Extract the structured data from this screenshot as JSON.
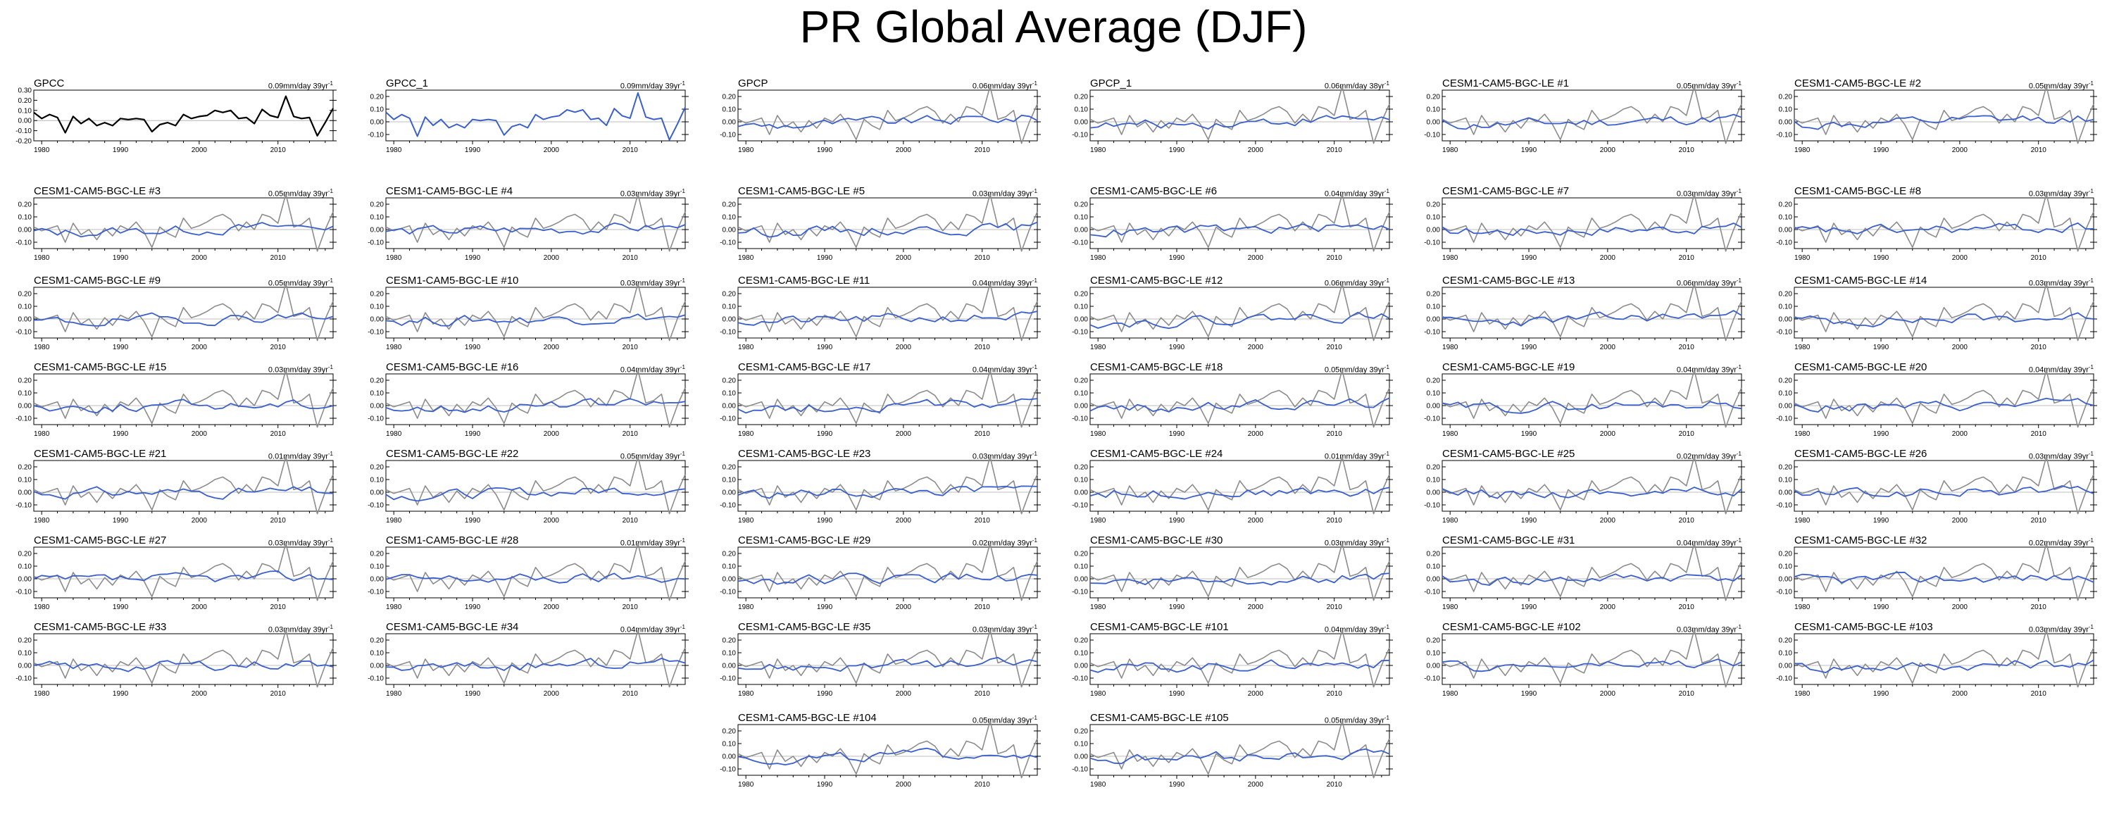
{
  "title": "PR Global Average (DJF)",
  "colors": {
    "reference": "#000000",
    "observed_in_model_panels": "#8c8c8c",
    "model_series": "#3a5fcd",
    "zero_line": "#aaaaaa",
    "axis": "#000000"
  },
  "chart_data": {
    "type": "line",
    "layout": "small multiples grid, 6 columns",
    "x_ticks": [
      1980,
      1990,
      2000,
      2010
    ],
    "x_range": [
      1979,
      2017
    ],
    "default_y_ticks": [
      "0.20",
      "0.10",
      "0.00",
      "-0.10"
    ],
    "default_y_range": [
      -0.15,
      0.25
    ],
    "first_panel_y_ticks": [
      "0.30",
      "0.20",
      "0.10",
      "0.00",
      "-0.10",
      "-0.20"
    ],
    "first_panel_y_range": [
      -0.2,
      0.3
    ],
    "years": [
      1979,
      1980,
      1981,
      1982,
      1983,
      1984,
      1985,
      1986,
      1987,
      1988,
      1989,
      1990,
      1991,
      1992,
      1993,
      1994,
      1995,
      1996,
      1997,
      1998,
      1999,
      2000,
      2001,
      2002,
      2003,
      2004,
      2005,
      2006,
      2007,
      2008,
      2009,
      2010,
      2011,
      2012,
      2013,
      2014,
      2015,
      2016,
      2017
    ],
    "reference_series": {
      "name": "GPCC",
      "values": [
        0.08,
        0.02,
        0.06,
        0.03,
        -0.12,
        0.04,
        -0.03,
        0.02,
        -0.05,
        -0.02,
        -0.05,
        0.02,
        0.01,
        0.02,
        0.01,
        -0.11,
        -0.04,
        -0.02,
        -0.05,
        0.06,
        0.02,
        0.04,
        0.05,
        0.1,
        0.08,
        0.1,
        0.02,
        0.03,
        -0.03,
        0.11,
        0.05,
        0.03,
        0.24,
        0.04,
        0.02,
        0.03,
        -0.15,
        -0.02,
        0.12
      ]
    },
    "observed_series": {
      "values": [
        0.02,
        -0.01,
        0.01,
        0.03,
        -0.1,
        0.05,
        -0.04,
        0.0,
        -0.08,
        0.01,
        -0.05,
        0.03,
        0.0,
        0.06,
        -0.02,
        -0.14,
        0.02,
        -0.03,
        -0.06,
        0.09,
        0.01,
        0.03,
        0.06,
        0.1,
        0.12,
        0.08,
        -0.01,
        0.06,
        0.0,
        0.12,
        0.1,
        0.05,
        0.28,
        0.02,
        0.04,
        0.09,
        -0.17,
        0.0,
        0.14
      ]
    },
    "panels": [
      {
        "name": "GPCC",
        "trend": "0.09mm/day 39yr",
        "kind": "reference"
      },
      {
        "name": "GPCC_1",
        "trend": "0.09mm/day 39yr",
        "kind": "obs-blue"
      },
      {
        "name": "GPCP",
        "trend": "0.06mm/day 39yr",
        "kind": "model"
      },
      {
        "name": "GPCP_1",
        "trend": "0.06mm/day 38yr",
        "kind": "model"
      },
      {
        "name": "CESM1-CAM5-BGC-LE #1",
        "trend": "0.05mm/day 39yr",
        "kind": "model"
      },
      {
        "name": "CESM1-CAM5-BGC-LE #2",
        "trend": "0.05mm/day 39yr",
        "kind": "model"
      },
      {
        "name": "CESM1-CAM5-BGC-LE #3",
        "trend": "0.05mm/day 39yr",
        "kind": "model"
      },
      {
        "name": "CESM1-CAM5-BGC-LE #4",
        "trend": "0.03mm/day 39yr",
        "kind": "model"
      },
      {
        "name": "CESM1-CAM5-BGC-LE #5",
        "trend": "0.03mm/day 39yr",
        "kind": "model"
      },
      {
        "name": "CESM1-CAM5-BGC-LE #6",
        "trend": "0.04mm/day 39yr",
        "kind": "model"
      },
      {
        "name": "CESM1-CAM5-BGC-LE #7",
        "trend": "0.03mm/day 39yr",
        "kind": "model"
      },
      {
        "name": "CESM1-CAM5-BGC-LE #8",
        "trend": "0.03mm/day 39yr",
        "kind": "model"
      },
      {
        "name": "CESM1-CAM5-BGC-LE #9",
        "trend": "0.05mm/day 39yr",
        "kind": "model"
      },
      {
        "name": "CESM1-CAM5-BGC-LE #10",
        "trend": "0.03mm/day 39yr",
        "kind": "model"
      },
      {
        "name": "CESM1-CAM5-BGC-LE #11",
        "trend": "0.04mm/day 39yr",
        "kind": "model"
      },
      {
        "name": "CESM1-CAM5-BGC-LE #12",
        "trend": "0.06mm/day 39yr",
        "kind": "model"
      },
      {
        "name": "CESM1-CAM5-BGC-LE #13",
        "trend": "0.06mm/day 39yr",
        "kind": "model"
      },
      {
        "name": "CESM1-CAM5-BGC-LE #14",
        "trend": "0.03mm/day 39yr",
        "kind": "model"
      },
      {
        "name": "CESM1-CAM5-BGC-LE #15",
        "trend": "0.03mm/day 39yr",
        "kind": "model"
      },
      {
        "name": "CESM1-CAM5-BGC-LE #16",
        "trend": "0.04mm/day 39yr",
        "kind": "model"
      },
      {
        "name": "CESM1-CAM5-BGC-LE #17",
        "trend": "0.04mm/day 39yr",
        "kind": "model"
      },
      {
        "name": "CESM1-CAM5-BGC-LE #18",
        "trend": "0.05mm/day 39yr",
        "kind": "model"
      },
      {
        "name": "CESM1-CAM5-BGC-LE #19",
        "trend": "0.04mm/day 39yr",
        "kind": "model"
      },
      {
        "name": "CESM1-CAM5-BGC-LE #20",
        "trend": "0.04mm/day 39yr",
        "kind": "model"
      },
      {
        "name": "CESM1-CAM5-BGC-LE #21",
        "trend": "0.01mm/day 39yr",
        "kind": "model"
      },
      {
        "name": "CESM1-CAM5-BGC-LE #22",
        "trend": "0.05mm/day 39yr",
        "kind": "model"
      },
      {
        "name": "CESM1-CAM5-BGC-LE #23",
        "trend": "0.03mm/day 39yr",
        "kind": "model"
      },
      {
        "name": "CESM1-CAM5-BGC-LE #24",
        "trend": "0.01mm/day 39yr",
        "kind": "model"
      },
      {
        "name": "CESM1-CAM5-BGC-LE #25",
        "trend": "0.02mm/day 39yr",
        "kind": "model"
      },
      {
        "name": "CESM1-CAM5-BGC-LE #26",
        "trend": "0.03mm/day 39yr",
        "kind": "model"
      },
      {
        "name": "CESM1-CAM5-BGC-LE #27",
        "trend": "0.03mm/day 39yr",
        "kind": "model"
      },
      {
        "name": "CESM1-CAM5-BGC-LE #28",
        "trend": "0.01mm/day 39yr",
        "kind": "model"
      },
      {
        "name": "CESM1-CAM5-BGC-LE #29",
        "trend": "0.02mm/day 39yr",
        "kind": "model"
      },
      {
        "name": "CESM1-CAM5-BGC-LE #30",
        "trend": "0.03mm/day 39yr",
        "kind": "model"
      },
      {
        "name": "CESM1-CAM5-BGC-LE #31",
        "trend": "0.04mm/day 39yr",
        "kind": "model"
      },
      {
        "name": "CESM1-CAM5-BGC-LE #32",
        "trend": "0.02mm/day 39yr",
        "kind": "model"
      },
      {
        "name": "CESM1-CAM5-BGC-LE #33",
        "trend": "0.03mm/day 39yr",
        "kind": "model"
      },
      {
        "name": "CESM1-CAM5-BGC-LE #34",
        "trend": "0.04mm/day 39yr",
        "kind": "model"
      },
      {
        "name": "CESM1-CAM5-BGC-LE #35",
        "trend": "0.03mm/day 39yr",
        "kind": "model"
      },
      {
        "name": "CESM1-CAM5-BGC-LE #101",
        "trend": "0.04mm/day 39yr",
        "kind": "model"
      },
      {
        "name": "CESM1-CAM5-BGC-LE #102",
        "trend": "0.03mm/day 39yr",
        "kind": "model"
      },
      {
        "name": "CESM1-CAM5-BGC-LE #103",
        "trend": "0.03mm/day 39yr",
        "kind": "model"
      },
      {
        "name": "CESM1-CAM5-BGC-LE #104",
        "trend": "0.05mm/day 39yr",
        "kind": "model"
      },
      {
        "name": "CESM1-CAM5-BGC-LE #105",
        "trend": "0.05mm/day 39yr",
        "kind": "model"
      }
    ]
  }
}
